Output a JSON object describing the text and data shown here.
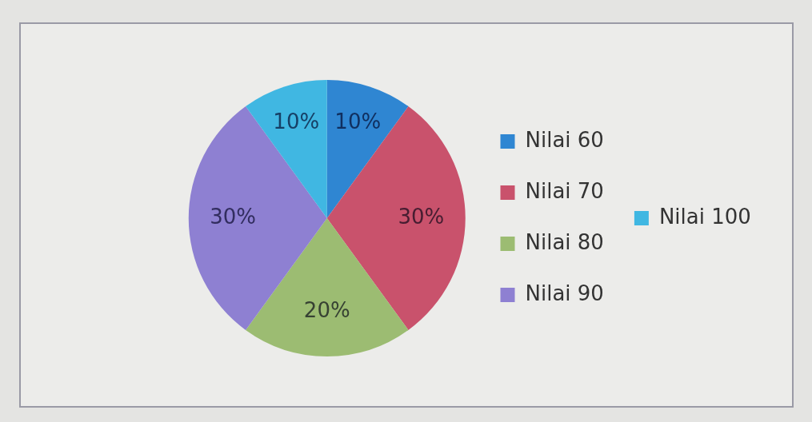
{
  "chart_data": {
    "type": "pie",
    "categories": [
      "Nilai 60",
      "Nilai 70",
      "Nilai 80",
      "Nilai 90",
      "Nilai 100"
    ],
    "values": [
      10,
      30,
      20,
      30,
      10
    ],
    "colors": [
      "#2f86d2",
      "#c9526c",
      "#9cbc72",
      "#8e80d2",
      "#40b7e2"
    ],
    "value_labels": [
      "10%",
      "30%",
      "20%",
      "30%",
      "10%"
    ],
    "legend": "right"
  }
}
